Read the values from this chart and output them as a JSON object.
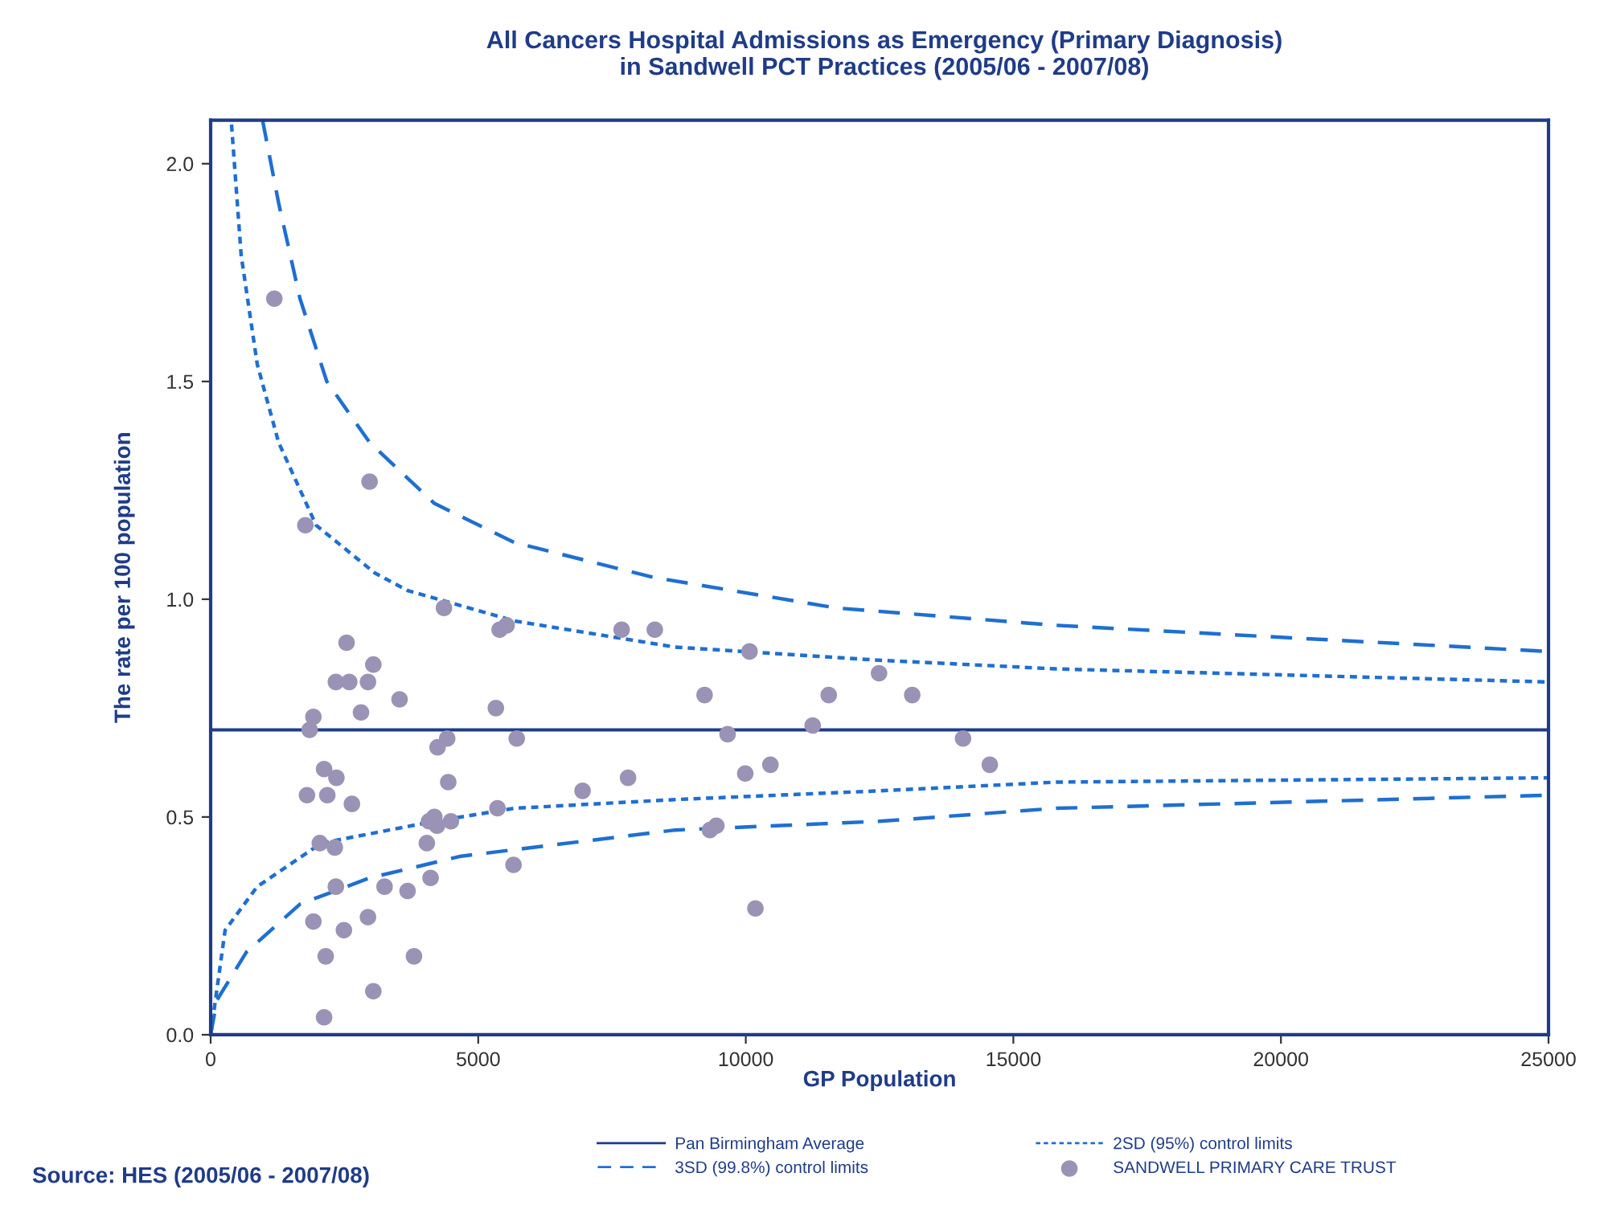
{
  "chart_data": {
    "type": "scatter",
    "title": "All Cancers Hospital Admissions as Emergency (Primary Diagnosis)\nin Sandwell PCT Practices (2005/06 - 2007/08)",
    "xlabel": "GP Population",
    "ylabel": "The rate per 100 population",
    "xlim": [
      0,
      25000
    ],
    "xticks": [
      0,
      5000,
      10000,
      15000,
      20000,
      25000
    ],
    "ylim": [
      0,
      2.1
    ],
    "yticks": [
      {
        "value": 0,
        "label": "0.0"
      },
      {
        "value": 0.5,
        "label": "0.5"
      },
      {
        "value": 1,
        "label": "1.0"
      },
      {
        "value": 1.5,
        "label": "1.5"
      },
      {
        "value": 2,
        "label": "2.0"
      }
    ],
    "grid": false,
    "legend": "bottom",
    "ref_lines": [
      {
        "axis": "y",
        "value": 0.7,
        "label": "Pan Birmingham Average",
        "color": "#1f3c88",
        "line_style": "solid"
      }
    ],
    "series": [
      {
        "type": "line",
        "name": "3SD (99.8%) control limits",
        "color": "#1f6fd1",
        "line_style": "dashed",
        "marker": "none",
        "x": [
          970,
          1270,
          1670,
          2170,
          2970,
          4180,
          5680,
          8280,
          11690,
          15800,
          25000
        ],
        "values": [
          2.1,
          1.91,
          1.69,
          1.5,
          1.36,
          1.22,
          1.13,
          1.05,
          0.98,
          0.94,
          0.88
        ]
      },
      {
        "type": "line",
        "name": "2SD (95%) control limits",
        "color": "#1f6fd1",
        "line_style": "dotted",
        "marker": "none",
        "x": [
          390,
          570,
          870,
          1270,
          1970,
          3070,
          3680,
          5680,
          8680,
          12490,
          15800,
          25000
        ],
        "values": [
          2.09,
          1.79,
          1.54,
          1.36,
          1.17,
          1.06,
          1.02,
          0.95,
          0.89,
          0.86,
          0.84,
          0.81
        ]
      },
      {
        "type": "line",
        "color": "#1f6fd1",
        "line_style": "dotted",
        "marker": "none",
        "x": [
          0,
          270,
          870,
          2070,
          4180,
          5680,
          8680,
          12490,
          15800,
          25000
        ],
        "values": [
          0,
          0.24,
          0.34,
          0.44,
          0.49,
          0.52,
          0.54,
          0.56,
          0.58,
          0.59
        ]
      },
      {
        "type": "line",
        "color": "#1f6fd1",
        "line_style": "dashed",
        "marker": "none",
        "x": [
          0,
          120,
          670,
          1670,
          2970,
          4680,
          8680,
          12490,
          15800,
          25000
        ],
        "values": [
          0,
          0.08,
          0.19,
          0.3,
          0.36,
          0.41,
          0.47,
          0.49,
          0.52,
          0.55
        ]
      },
      {
        "name": "SANDWELL PRIMARY CARE TRUST",
        "color": "#9b93b5",
        "marker": "circle",
        "x": [
          1190,
          1770,
          2970,
          4360,
          5400,
          5530,
          7680,
          8300,
          2540,
          3040,
          2340,
          2590,
          2940,
          2810,
          3530,
          5330,
          1920,
          1850,
          4420,
          4240,
          5720,
          2120,
          2350,
          1800,
          2180,
          2640,
          4440,
          6950,
          7800,
          5360,
          4080,
          4180,
          4230,
          4490,
          4040,
          2040,
          2320,
          5660,
          2340,
          3250,
          3680,
          4110,
          1920,
          2490,
          2940,
          2150,
          3800,
          3040,
          2120,
          10070,
          9230,
          11550,
          12490,
          13110,
          9660,
          11250,
          14060,
          14560,
          9990,
          10460,
          9330,
          9450,
          10180
        ],
        "values": [
          1.69,
          1.17,
          1.27,
          0.98,
          0.93,
          0.94,
          0.93,
          0.93,
          0.9,
          0.85,
          0.81,
          0.81,
          0.81,
          0.74,
          0.77,
          0.75,
          0.73,
          0.7,
          0.68,
          0.66,
          0.68,
          0.61,
          0.59,
          0.55,
          0.55,
          0.53,
          0.58,
          0.56,
          0.59,
          0.52,
          0.49,
          0.5,
          0.48,
          0.49,
          0.44,
          0.44,
          0.43,
          0.39,
          0.34,
          0.34,
          0.33,
          0.36,
          0.26,
          0.24,
          0.27,
          0.18,
          0.18,
          0.1,
          0.04,
          0.88,
          0.78,
          0.78,
          0.83,
          0.78,
          0.69,
          0.71,
          0.68,
          0.62,
          0.6,
          0.62,
          0.47,
          0.48,
          0.29
        ]
      }
    ],
    "annotations": [
      "Source: HES (2005/06 - 2007/08)"
    ]
  }
}
